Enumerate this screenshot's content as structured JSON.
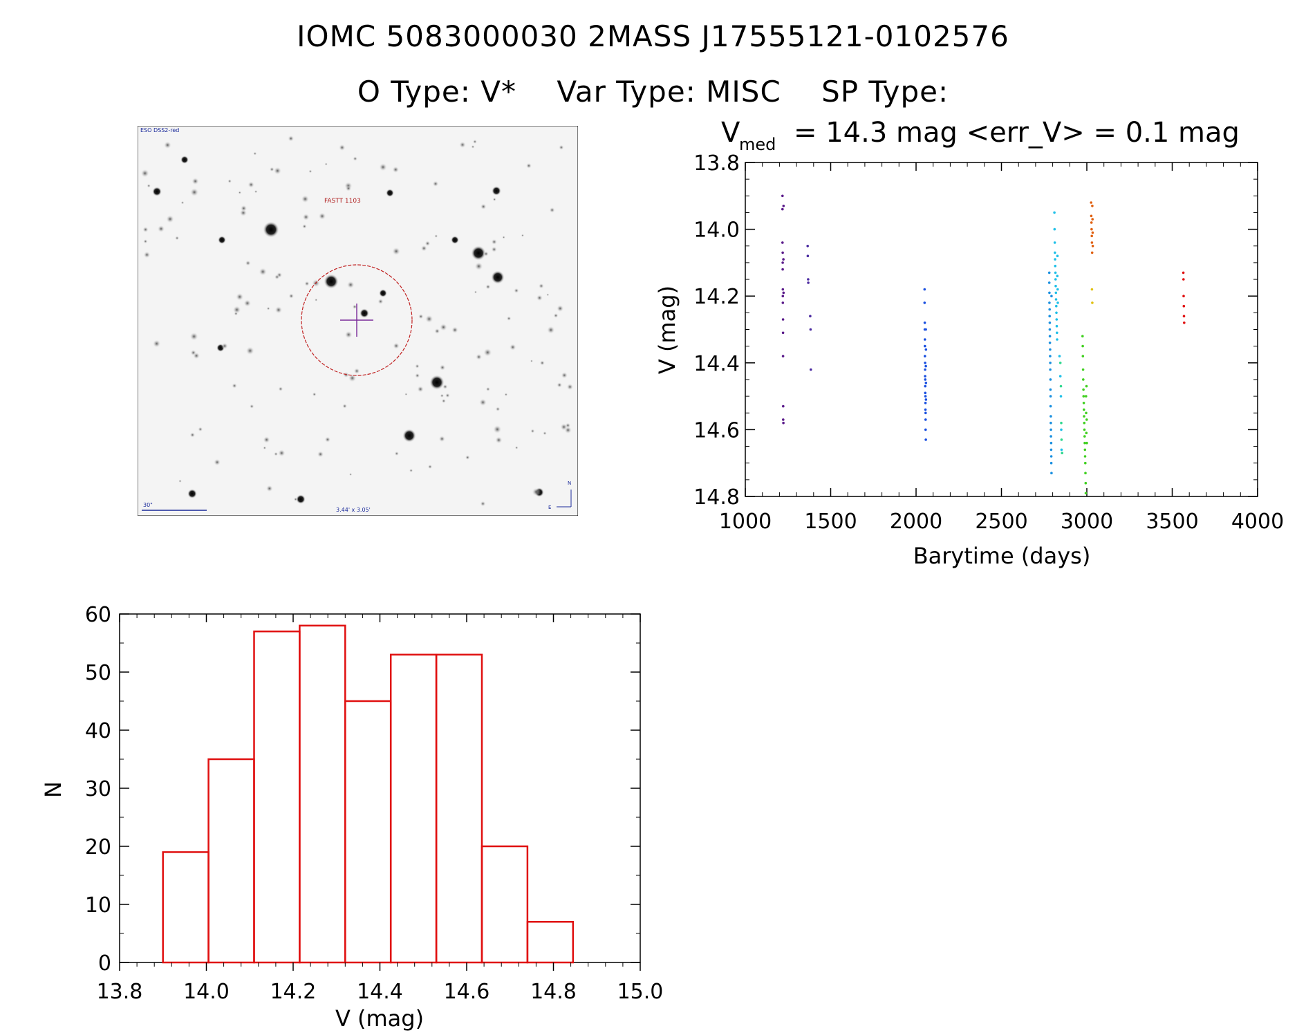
{
  "header": {
    "line1": "IOMC 5083000030    2MASS J17555121-0102576",
    "otype": "O Type: V*",
    "vartype": "Var Type: MISC",
    "sptype": "SP Type:"
  },
  "finder": {
    "survey_label": "ESO DSS2-red",
    "target_label": "FASTT 1103",
    "scale_label": "30\"",
    "fov_label": "3.44' x 3.05'",
    "north": "N",
    "east": "E",
    "colors": {
      "circle": "#c02020",
      "cross": "#7a2a9a",
      "label_red": "#b02020",
      "label_blue": "#1a2a9a"
    }
  },
  "chart_data": [
    {
      "type": "scatter",
      "title_v": "V",
      "title_sub": "med",
      "title_rest": "= 14.3 mag <err_V> = 0.1 mag",
      "xlabel": "Barytime (days)",
      "ylabel": "V (mag)",
      "xlim": [
        1000,
        4000
      ],
      "ylim": [
        14.8,
        13.8
      ],
      "xticks": [
        "1000",
        "1500",
        "2000",
        "2500",
        "3000",
        "3500",
        "4000"
      ],
      "yticks": [
        "13.8",
        "14.0",
        "14.2",
        "14.4",
        "14.6",
        "14.8"
      ],
      "series": [
        {
          "color": "#5a1a8a",
          "x": [
            1218,
            1218,
            1218,
            1219,
            1219,
            1219,
            1220,
            1220,
            1220,
            1221,
            1221,
            1221,
            1222,
            1222,
            1223,
            1223,
            1224,
            1224
          ],
          "y": [
            13.9,
            13.94,
            14.04,
            14.07,
            14.1,
            14.12,
            14.18,
            14.2,
            14.22,
            14.27,
            14.31,
            14.38,
            14.53,
            14.57,
            14.58,
            14.09,
            14.19,
            13.93
          ]
        },
        {
          "color": "#4a2aa0",
          "x": [
            1365,
            1366,
            1368,
            1369,
            1380,
            1382,
            1384
          ],
          "y": [
            14.05,
            14.08,
            14.15,
            14.16,
            14.26,
            14.3,
            14.42
          ]
        },
        {
          "color": "#1a50e0",
          "x": [
            2050,
            2050,
            2051,
            2051,
            2052,
            2052,
            2052,
            2053,
            2053,
            2053,
            2054,
            2054,
            2054,
            2055,
            2055,
            2055,
            2056,
            2056,
            2056,
            2057,
            2057,
            2057,
            2058,
            2058,
            2058
          ],
          "y": [
            14.18,
            14.22,
            14.28,
            14.3,
            14.33,
            14.35,
            14.38,
            14.4,
            14.42,
            14.44,
            14.45,
            14.47,
            14.49,
            14.5,
            14.52,
            14.54,
            14.55,
            14.57,
            14.6,
            14.63,
            14.3,
            14.41,
            14.46,
            14.51,
            14.36
          ]
        },
        {
          "color": "#1a90e0",
          "x": [
            2780,
            2780,
            2781,
            2781,
            2782,
            2782,
            2783,
            2783,
            2784,
            2784,
            2785,
            2785,
            2786,
            2786,
            2787,
            2787,
            2788,
            2788,
            2789,
            2789,
            2790,
            2790,
            2791,
            2791,
            2792,
            2792,
            2793,
            2793
          ],
          "y": [
            14.13,
            14.16,
            14.19,
            14.22,
            14.24,
            14.26,
            14.28,
            14.3,
            14.32,
            14.34,
            14.36,
            14.38,
            14.4,
            14.42,
            14.45,
            14.48,
            14.5,
            14.53,
            14.56,
            14.58,
            14.6,
            14.62,
            14.64,
            14.66,
            14.68,
            14.7,
            14.73,
            14.2
          ]
        },
        {
          "color": "#20c0e8",
          "x": [
            2810,
            2811,
            2812,
            2813,
            2814,
            2815,
            2816,
            2817,
            2818,
            2819,
            2820,
            2821,
            2822,
            2823,
            2824,
            2825,
            2826,
            2827,
            2828,
            2829,
            2830,
            2840,
            2845,
            2848,
            2850,
            2852
          ],
          "y": [
            13.95,
            14.0,
            14.04,
            14.07,
            14.09,
            14.11,
            14.13,
            14.15,
            14.17,
            14.19,
            14.21,
            14.23,
            14.25,
            14.27,
            14.29,
            14.31,
            14.33,
            14.14,
            14.08,
            14.18,
            14.22,
            14.38,
            14.44,
            14.5,
            14.6,
            14.66
          ]
        },
        {
          "color": "#30d890",
          "x": [
            2845,
            2848,
            2850,
            2852,
            2855
          ],
          "y": [
            14.4,
            14.47,
            14.58,
            14.63,
            14.67
          ]
        },
        {
          "color": "#40d020",
          "x": [
            2975,
            2976,
            2977,
            2978,
            2979,
            2980,
            2981,
            2982,
            2983,
            2984,
            2985,
            2986,
            2987,
            2988,
            2989,
            2990,
            2991,
            2992,
            2993,
            2994,
            2995,
            2996,
            2997,
            2998,
            2999,
            3000
          ],
          "y": [
            14.32,
            14.35,
            14.38,
            14.42,
            14.45,
            14.48,
            14.5,
            14.52,
            14.54,
            14.56,
            14.58,
            14.6,
            14.62,
            14.64,
            14.66,
            14.68,
            14.7,
            14.73,
            14.76,
            14.79,
            14.5,
            14.55,
            14.61,
            14.47,
            14.57,
            14.64
          ]
        },
        {
          "color": "#e0c010",
          "x": [
            3030,
            3032
          ],
          "y": [
            14.18,
            14.22
          ]
        },
        {
          "color": "#e06010",
          "x": [
            3025,
            3026,
            3027,
            3028,
            3029,
            3030,
            3031,
            3032,
            3033,
            3034,
            3035
          ],
          "y": [
            13.92,
            13.96,
            13.98,
            14.0,
            14.02,
            14.04,
            14.07,
            13.93,
            13.97,
            14.01,
            14.05
          ]
        },
        {
          "color": "#e01010",
          "x": [
            3565,
            3566,
            3567,
            3568,
            3569,
            3570
          ],
          "y": [
            14.13,
            14.15,
            14.2,
            14.23,
            14.26,
            14.28
          ]
        }
      ]
    },
    {
      "type": "bar",
      "xlabel": "V (mag)",
      "ylabel": "N",
      "xlim": [
        13.8,
        15.0
      ],
      "ylim": [
        0,
        60
      ],
      "xticks": [
        "13.8",
        "14.0",
        "14.2",
        "14.4",
        "14.6",
        "14.8",
        "15.0"
      ],
      "yticks": [
        "0",
        "10",
        "20",
        "30",
        "40",
        "50",
        "60"
      ],
      "bin_edges": [
        13.9,
        14.005,
        14.11,
        14.215,
        14.32,
        14.425,
        14.53,
        14.635,
        14.74,
        14.845
      ],
      "values": [
        19,
        35,
        57,
        58,
        45,
        53,
        53,
        20,
        7
      ],
      "color": "#e01010"
    }
  ]
}
